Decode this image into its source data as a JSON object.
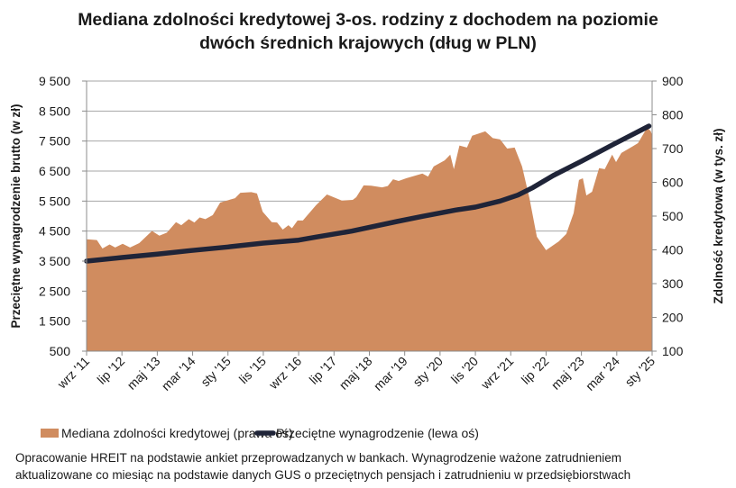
{
  "chart_data": {
    "type": "area+line",
    "title_lines": [
      "Mediana zdolności kredytowej 3-os. rodziny z dochodem na poziomie",
      "dwóch średnich krajowych (dług w PLN)"
    ],
    "ylabel_left": "Przeciętne wynagrodzenie brutto (w zł)",
    "ylabel_right": "Zdolność kredytowa (w tys. zł)",
    "x_unit": "months since 2011-09",
    "x_start": "2011-09",
    "xlim": [
      0,
      160
    ],
    "x_ticks": [
      {
        "m": 0,
        "label": "wrz '11"
      },
      {
        "m": 10,
        "label": "lip '12"
      },
      {
        "m": 20,
        "label": "maj '13"
      },
      {
        "m": 30,
        "label": "mar '14"
      },
      {
        "m": 40,
        "label": "sty '15"
      },
      {
        "m": 50,
        "label": "lis '15"
      },
      {
        "m": 60,
        "label": "wrz '16"
      },
      {
        "m": 70,
        "label": "lip '17"
      },
      {
        "m": 80,
        "label": "maj '18"
      },
      {
        "m": 90,
        "label": "mar '19"
      },
      {
        "m": 100,
        "label": "sty '20"
      },
      {
        "m": 110,
        "label": "lis '20"
      },
      {
        "m": 120,
        "label": "wrz '21"
      },
      {
        "m": 130,
        "label": "lip '22"
      },
      {
        "m": 140,
        "label": "maj '23"
      },
      {
        "m": 150,
        "label": "mar '24"
      },
      {
        "m": 160,
        "label": "sty '25"
      }
    ],
    "ylim_left": [
      500,
      9500
    ],
    "yticks_left": [
      "500",
      "1 500",
      "2 500",
      "3 500",
      "4 500",
      "5 500",
      "6 500",
      "7 500",
      "8 500",
      "9 500"
    ],
    "ylim_right": [
      100,
      900
    ],
    "yticks_right": [
      "100",
      "200",
      "300",
      "400",
      "500",
      "600",
      "700",
      "800",
      "900"
    ],
    "grid": true,
    "legend_position": "bottom",
    "series": [
      {
        "name": "Mediana zdolności kredytowej (prawa oś)",
        "type": "area",
        "axis": "right",
        "color": "#D08C5F",
        "points": [
          [
            0,
            431
          ],
          [
            0.5,
            431
          ],
          [
            2.9,
            429
          ],
          [
            4.5,
            404
          ],
          [
            6.5,
            416
          ],
          [
            8.1,
            407
          ],
          [
            10.2,
            418
          ],
          [
            12.3,
            407
          ],
          [
            14.9,
            420
          ],
          [
            18.5,
            456
          ],
          [
            20.6,
            442
          ],
          [
            22.7,
            451
          ],
          [
            25.3,
            482
          ],
          [
            26.8,
            473
          ],
          [
            28.9,
            491
          ],
          [
            30.5,
            481
          ],
          [
            32,
            496
          ],
          [
            33.6,
            491
          ],
          [
            35.7,
            503
          ],
          [
            37.8,
            540
          ],
          [
            42,
            553
          ],
          [
            43.5,
            569
          ],
          [
            46.6,
            571
          ],
          [
            48.2,
            567
          ],
          [
            49.8,
            513
          ],
          [
            52.4,
            482
          ],
          [
            53.9,
            481
          ],
          [
            55.5,
            460
          ],
          [
            57.1,
            473
          ],
          [
            58.1,
            464
          ],
          [
            59.7,
            487
          ],
          [
            61.2,
            487
          ],
          [
            64.9,
            532
          ],
          [
            68,
            564
          ],
          [
            70.1,
            555
          ],
          [
            72.2,
            546
          ],
          [
            75.3,
            548
          ],
          [
            76.3,
            556
          ],
          [
            78.4,
            591
          ],
          [
            80.5,
            590
          ],
          [
            83.6,
            585
          ],
          [
            85.2,
            589
          ],
          [
            86.7,
            609
          ],
          [
            88.3,
            604
          ],
          [
            90.4,
            612
          ],
          [
            95,
            626
          ],
          [
            96.6,
            617
          ],
          [
            98.2,
            647
          ],
          [
            101.3,
            665
          ],
          [
            102.9,
            682
          ],
          [
            103.9,
            639
          ],
          [
            105.5,
            709
          ],
          [
            107.6,
            703
          ],
          [
            109.1,
            738
          ],
          [
            112.8,
            751
          ],
          [
            114.9,
            731
          ],
          [
            117,
            727
          ],
          [
            119,
            700
          ],
          [
            121.1,
            703
          ],
          [
            123.2,
            647
          ],
          [
            125.3,
            553
          ],
          [
            127.4,
            439
          ],
          [
            130,
            399
          ],
          [
            133.6,
            425
          ],
          [
            135.7,
            447
          ],
          [
            137.8,
            509
          ],
          [
            139.3,
            607
          ],
          [
            140.4,
            612
          ],
          [
            141.4,
            561
          ],
          [
            143,
            572
          ],
          [
            145,
            642
          ],
          [
            146.6,
            639
          ],
          [
            148.7,
            682
          ],
          [
            149.8,
            660
          ],
          [
            151.3,
            687
          ],
          [
            154.4,
            706
          ],
          [
            156,
            716
          ],
          [
            158.6,
            762
          ],
          [
            159.6,
            752
          ],
          [
            160,
            740
          ]
        ]
      },
      {
        "name": "Przeciętne wynagrodzenie (lewa oś)",
        "type": "line",
        "axis": "left",
        "color": "#1F2438",
        "points": [
          [
            0,
            3500
          ],
          [
            10,
            3620
          ],
          [
            20,
            3730
          ],
          [
            29.4,
            3850
          ],
          [
            40,
            3970
          ],
          [
            50,
            4100
          ],
          [
            60,
            4200
          ],
          [
            64.9,
            4300
          ],
          [
            75,
            4500
          ],
          [
            87.8,
            4820
          ],
          [
            95,
            4990
          ],
          [
            104.4,
            5200
          ],
          [
            110,
            5300
          ],
          [
            117,
            5500
          ],
          [
            122,
            5700
          ],
          [
            126.3,
            5950
          ],
          [
            132,
            6350
          ],
          [
            139.9,
            6820
          ],
          [
            149.2,
            7400
          ],
          [
            155,
            7750
          ],
          [
            159.1,
            8000
          ]
        ]
      }
    ]
  },
  "legend": {
    "area_label": "Mediana zdolności kredytowej (prawa oś)",
    "line_label": "Przeciętne wynagrodzenie (lewa oś)"
  },
  "note_lines": [
    "Opracowanie HREIT na podstawie ankiet przeprowadzanych w bankach. Wynagrodzenie ważone zatrudnieniem",
    "aktualizowane co miesiąc na podstawie danych GUS o przeciętnych pensjach i zatrudnieniu w przedsiębiorstwach"
  ]
}
